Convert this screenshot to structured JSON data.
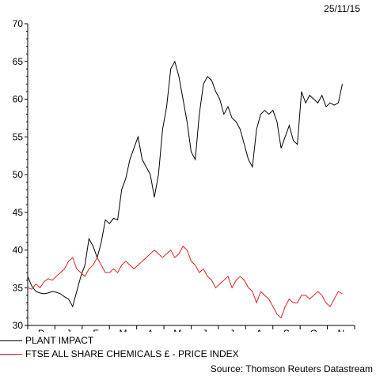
{
  "date_label": "25/11/15",
  "source": "Source: Thomson Reuters Datastream",
  "chart_data": {
    "type": "line",
    "ylim": [
      30,
      70
    ],
    "yticks": [
      30,
      35,
      40,
      45,
      50,
      55,
      60,
      65,
      70
    ],
    "x_labels": [
      "D",
      "J",
      "F",
      "M",
      "A",
      "M",
      "J",
      "J",
      "A",
      "S",
      "O",
      "N"
    ],
    "series": [
      {
        "name": "PLANT IMPACT",
        "color": "#000000",
        "x": [
          0,
          0.15,
          0.3,
          0.45,
          0.6,
          0.75,
          0.9,
          1.05,
          1.2,
          1.35,
          1.5,
          1.65,
          1.8,
          1.95,
          2.1,
          2.25,
          2.4,
          2.55,
          2.7,
          2.85,
          3.0,
          3.15,
          3.3,
          3.45,
          3.6,
          3.75,
          3.9,
          4.05,
          4.2,
          4.35,
          4.5,
          4.65,
          4.8,
          4.95,
          5.1,
          5.25,
          5.4,
          5.55,
          5.7,
          5.85,
          6.0,
          6.15,
          6.3,
          6.45,
          6.6,
          6.75,
          6.9,
          7.05,
          7.2,
          7.35,
          7.5,
          7.65,
          7.8,
          7.95,
          8.1,
          8.25,
          8.4,
          8.55,
          8.7,
          8.85,
          9.0,
          9.15,
          9.3,
          9.45,
          9.6,
          9.75,
          9.9,
          10.05,
          10.2,
          10.35,
          10.5,
          10.65,
          10.8,
          10.95,
          11.1,
          11.25,
          11.4,
          11.55
        ],
        "y": [
          36.5,
          35.2,
          34.5,
          34.3,
          34.2,
          34.3,
          34.5,
          34.4,
          34.2,
          33.8,
          33.5,
          32.5,
          34.5,
          36.5,
          38.0,
          41.5,
          40.5,
          39.0,
          41.0,
          44.0,
          43.5,
          44.2,
          44.0,
          48.0,
          49.5,
          52.0,
          53.5,
          55.0,
          52.0,
          51.0,
          50.0,
          47.0,
          50.0,
          56.0,
          59.0,
          64.0,
          65.0,
          63.0,
          60.0,
          57.0,
          53.0,
          52.0,
          58.0,
          62.0,
          63.0,
          62.5,
          61.0,
          60.0,
          58.0,
          59.0,
          57.5,
          57.0,
          56.0,
          54.0,
          52.0,
          51.0,
          56.0,
          58.0,
          58.5,
          58.0,
          58.5,
          57.0,
          53.5,
          55.0,
          56.5,
          54.5,
          54.0,
          61.0,
          59.5,
          60.5,
          60.0,
          59.5,
          60.5,
          59.0,
          59.5,
          59.2,
          59.5,
          62.0
        ]
      },
      {
        "name": "FTSE ALL SHARE CHEMICALS £ - PRICE INDEX",
        "color": "#e02020",
        "x": [
          0,
          0.15,
          0.3,
          0.45,
          0.6,
          0.75,
          0.9,
          1.05,
          1.2,
          1.35,
          1.5,
          1.65,
          1.8,
          1.95,
          2.1,
          2.25,
          2.4,
          2.55,
          2.7,
          2.85,
          3.0,
          3.15,
          3.3,
          3.45,
          3.6,
          3.75,
          3.9,
          4.05,
          4.2,
          4.35,
          4.5,
          4.65,
          4.8,
          4.95,
          5.1,
          5.25,
          5.4,
          5.55,
          5.7,
          5.85,
          6.0,
          6.15,
          6.3,
          6.45,
          6.6,
          6.75,
          6.9,
          7.05,
          7.2,
          7.35,
          7.5,
          7.65,
          7.8,
          7.95,
          8.1,
          8.25,
          8.4,
          8.55,
          8.7,
          8.85,
          9.0,
          9.15,
          9.3,
          9.45,
          9.6,
          9.75,
          9.9,
          10.05,
          10.2,
          10.35,
          10.5,
          10.65,
          10.8,
          10.95,
          11.1,
          11.25,
          11.4,
          11.55
        ],
        "y": [
          35.0,
          34.8,
          35.5,
          35.0,
          35.8,
          36.2,
          36.0,
          36.5,
          37.0,
          37.5,
          38.5,
          39.0,
          37.5,
          37.0,
          36.5,
          37.5,
          38.0,
          39.0,
          38.0,
          37.0,
          37.0,
          37.5,
          37.0,
          38.0,
          38.5,
          38.0,
          37.5,
          38.0,
          38.5,
          39.0,
          39.5,
          40.0,
          39.5,
          39.0,
          39.5,
          40.0,
          39.0,
          39.5,
          40.5,
          40.0,
          38.5,
          38.0,
          37.0,
          37.5,
          36.5,
          36.0,
          35.0,
          35.5,
          36.0,
          36.5,
          35.0,
          36.0,
          36.5,
          36.0,
          35.0,
          34.5,
          33.0,
          34.5,
          34.0,
          33.5,
          32.5,
          31.5,
          31.0,
          32.5,
          33.5,
          33.0,
          33.0,
          34.0,
          34.0,
          33.5,
          34.0,
          34.5,
          34.0,
          33.0,
          32.5,
          33.5,
          34.5,
          34.2
        ]
      }
    ]
  }
}
